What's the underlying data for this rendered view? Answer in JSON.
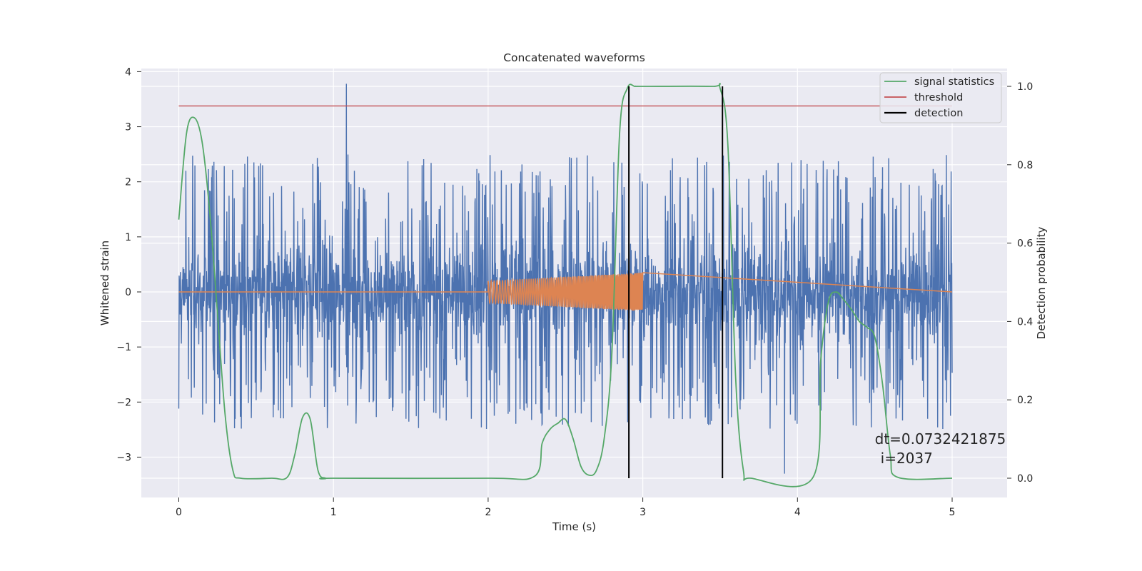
{
  "chart_data": {
    "type": "line",
    "title": "Concatenated waveforms",
    "xlabel": "Time (s)",
    "ylabel": "Whitened strain",
    "ylabel_right": "Detection probability",
    "xlim": [
      -0.25,
      5.35
    ],
    "ylim": [
      -3.75,
      4.1
    ],
    "ylim_right": [
      -0.048,
      1.03
    ],
    "x_ticks": [
      0,
      1,
      2,
      3,
      4,
      5
    ],
    "x_tick_labels": [
      "0",
      "1",
      "2",
      "3",
      "4",
      "5"
    ],
    "y_ticks": [
      -3,
      -2,
      -1,
      0,
      1,
      2,
      3,
      4
    ],
    "y_tick_labels": [
      "−3",
      "−2",
      "−1",
      "0",
      "1",
      "2",
      "3",
      "4"
    ],
    "y_ticks_right": [
      0.0,
      0.2,
      0.4,
      0.6,
      0.8,
      1.0
    ],
    "y_tick_labels_right": [
      "0.0",
      "0.2",
      "0.4",
      "0.6",
      "0.8",
      "1.0"
    ],
    "grid": true,
    "legend_position": "top-right",
    "colors": {
      "strain": "#4c72b0",
      "waveform": "#dd8452",
      "signal_statistics": "#55a868",
      "threshold": "#c44e52",
      "detection": "#000000",
      "background": "#eaeaf2",
      "grid": "#ffffff"
    },
    "strain_noise": {
      "x_range": [
        0,
        5
      ],
      "typical_range": [
        -2.2,
        2.5
      ],
      "max_spike": 3.78,
      "min_spike": -3.4
    },
    "waveform": {
      "x_start": 2.0,
      "x_end": 3.0,
      "amplitude_start": 0.2,
      "amplitude_end": 0.35
    },
    "signal_statistics": {
      "name": "signal statistics",
      "x": [
        0,
        0.05,
        0.1,
        0.15,
        0.2,
        0.25,
        0.3,
        0.35,
        0.4,
        0.6,
        0.7,
        0.75,
        0.8,
        0.85,
        0.9,
        0.95,
        1.0,
        2.0,
        2.3,
        2.35,
        2.4,
        2.45,
        2.5,
        2.55,
        2.6,
        2.65,
        2.7,
        2.75,
        2.8,
        2.85,
        2.9,
        2.95,
        3.0,
        3.45,
        3.5,
        3.55,
        3.6,
        3.65,
        3.7,
        4.1,
        4.15,
        4.2,
        4.25,
        4.3,
        4.35,
        4.4,
        4.45,
        4.5,
        4.55,
        4.6,
        4.65,
        5.0
      ],
      "y": [
        0.66,
        0.88,
        0.92,
        0.86,
        0.68,
        0.42,
        0.16,
        0.02,
        0.0,
        0.0,
        0.002,
        0.06,
        0.155,
        0.15,
        0.02,
        0.0,
        0.0,
        0.0,
        0.005,
        0.09,
        0.125,
        0.14,
        0.15,
        0.1,
        0.03,
        0.008,
        0.02,
        0.1,
        0.32,
        0.88,
        0.995,
        1.0,
        1.0,
        1.0,
        0.995,
        0.85,
        0.26,
        0.02,
        0.0,
        0.002,
        0.3,
        0.45,
        0.475,
        0.455,
        0.43,
        0.4,
        0.385,
        0.36,
        0.24,
        0.06,
        0.002,
        0.0
      ]
    },
    "threshold": {
      "name": "threshold",
      "value": 0.95,
      "x_range": [
        0,
        5
      ]
    },
    "detection": {
      "name": "detection",
      "x": [
        2.91,
        3.515
      ],
      "range": [
        0,
        1.0
      ]
    },
    "annotation": {
      "line1": "dt=0.0732421875",
      "line2": "i=2037",
      "x": 4.5,
      "y": 0.1
    }
  }
}
